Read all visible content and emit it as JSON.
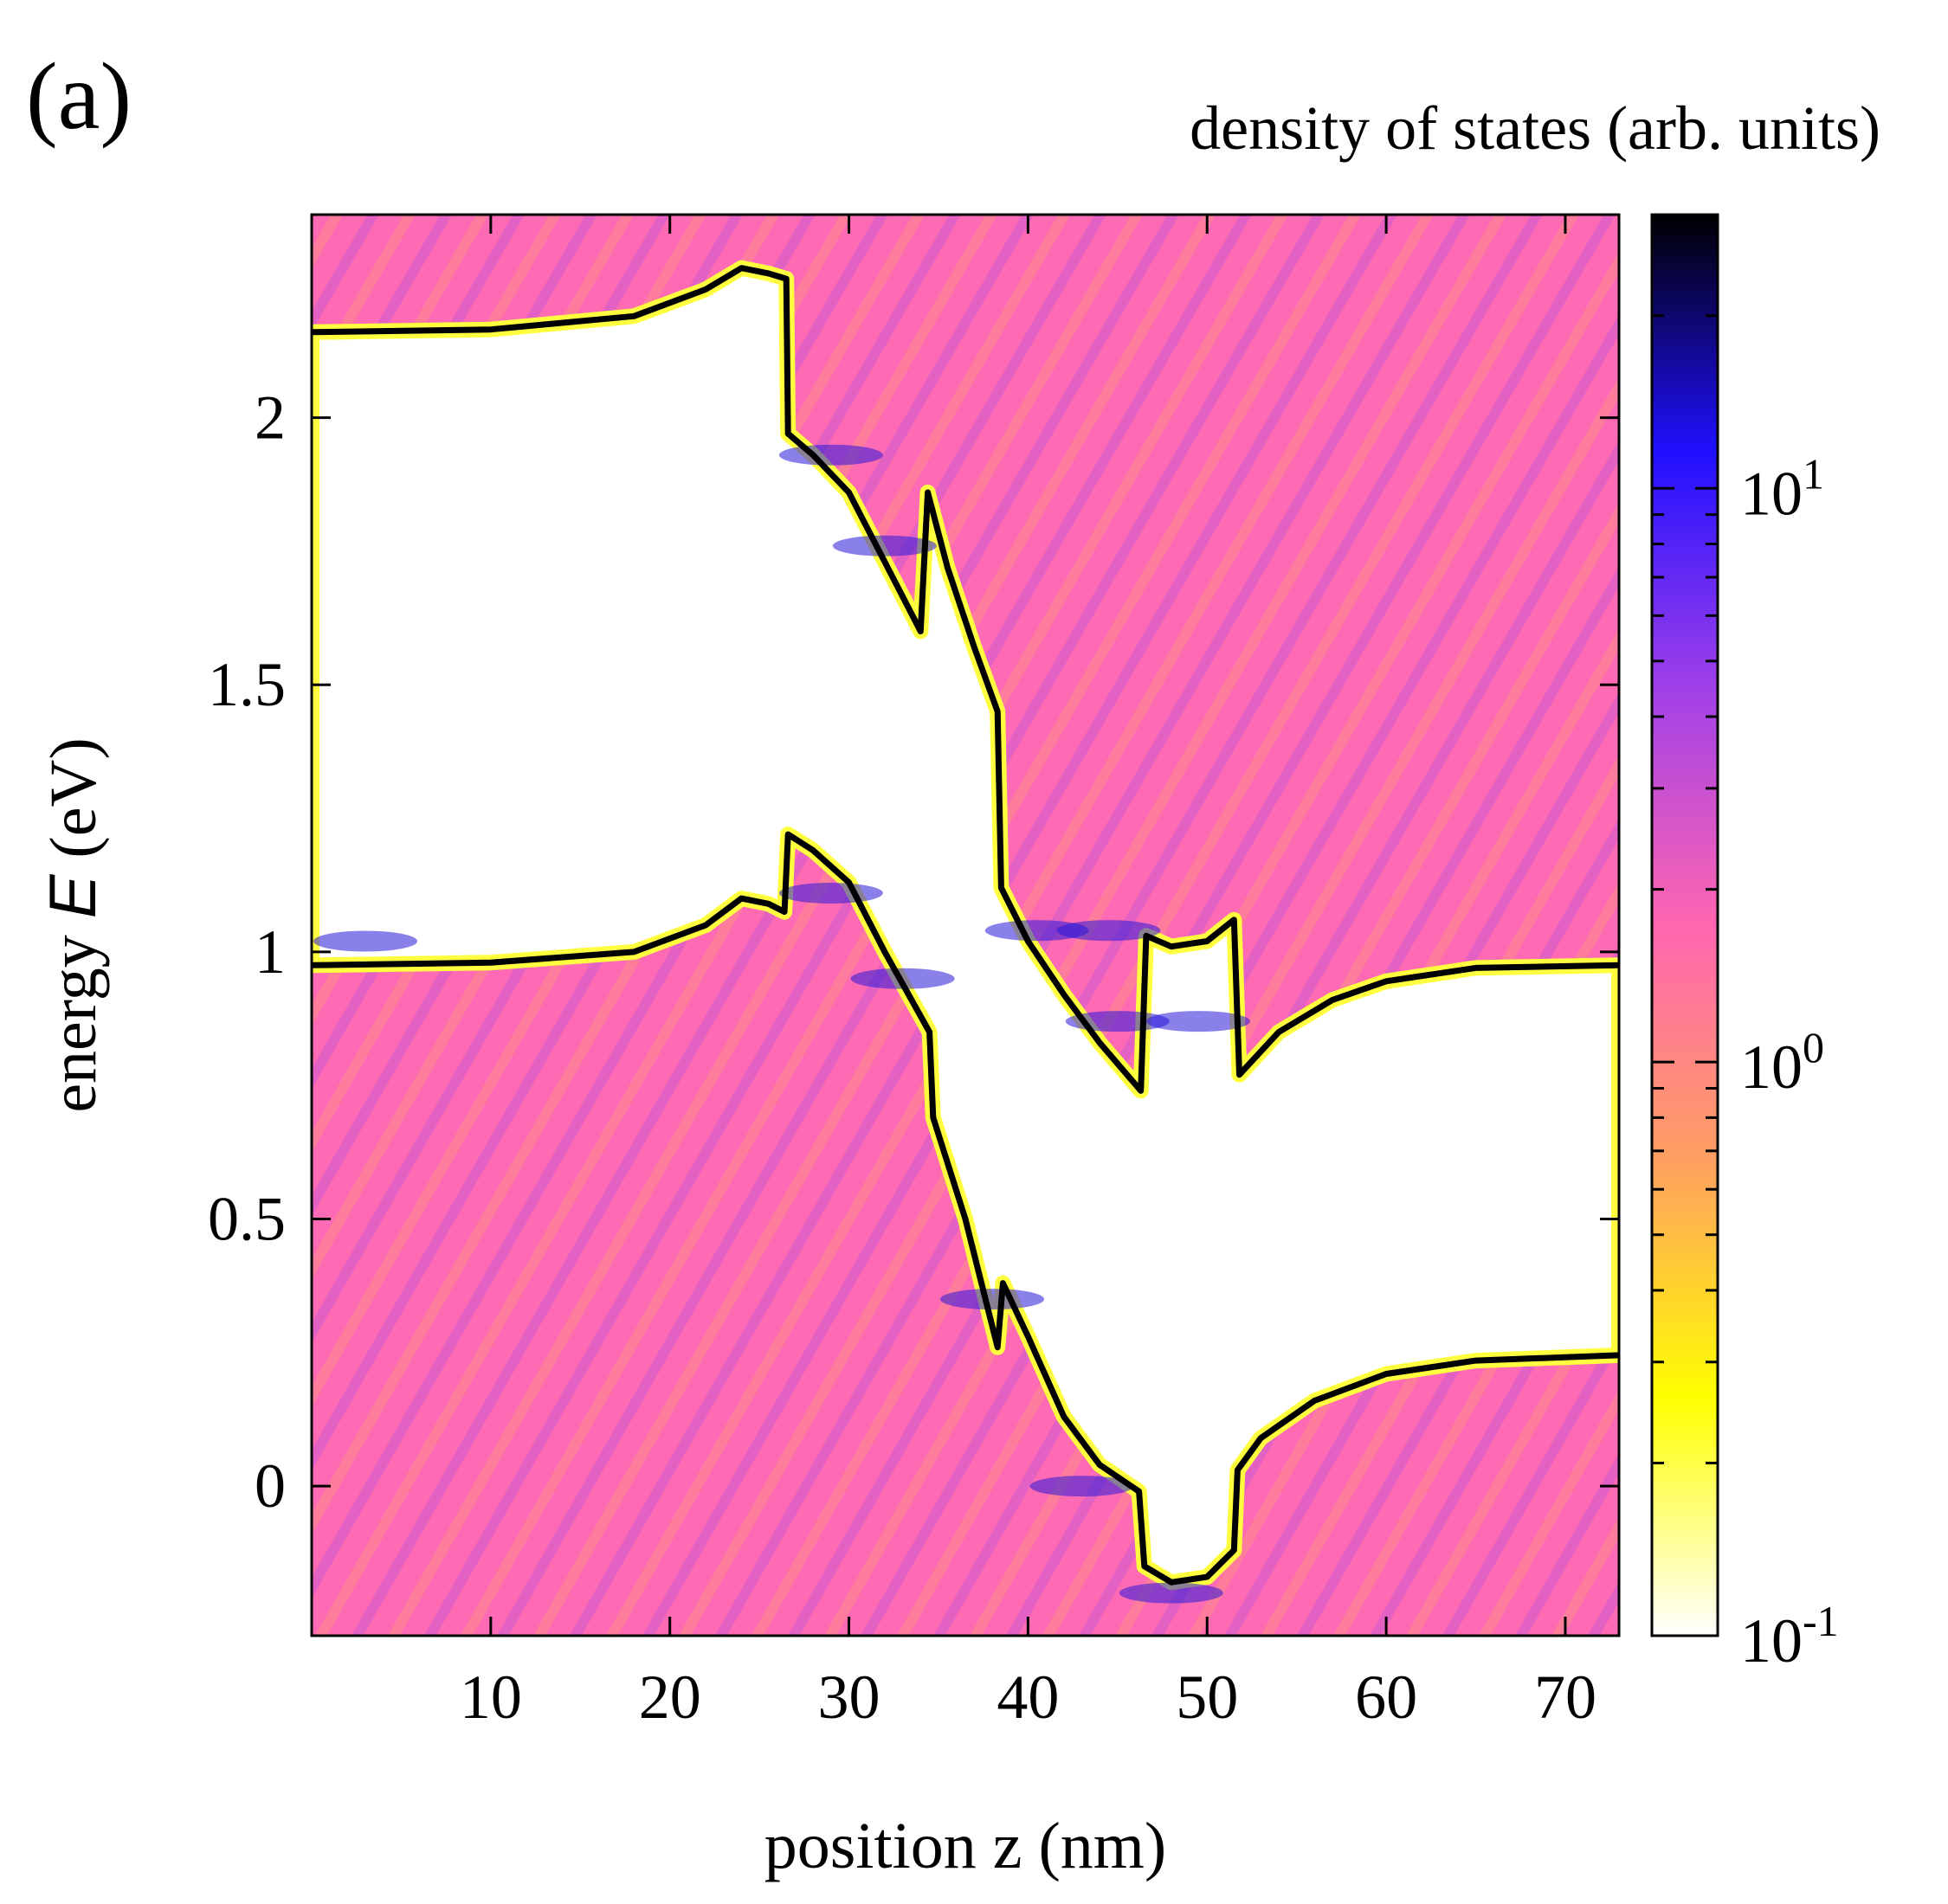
{
  "panel_label": "(a)",
  "chart_data": {
    "type": "heatmap",
    "title": "",
    "xlabel": "position z (nm)",
    "ylabel_prefix": "energy ",
    "ylabel_symbol": "E",
    "ylabel_suffix": " (eV)",
    "xlim": [
      0,
      73
    ],
    "ylim": [
      -0.28,
      2.38
    ],
    "xticks": [
      10,
      20,
      30,
      40,
      50,
      60,
      70
    ],
    "yticks": [
      0,
      0.5,
      1,
      1.5,
      2
    ],
    "colorbar": {
      "label": "density of states (arb. units)",
      "scale": "log",
      "range": [
        0.1,
        30
      ],
      "ticks": [
        {
          "value": 0.1,
          "base": "10",
          "exp": "-1"
        },
        {
          "value": 1,
          "base": "10",
          "exp": "0"
        },
        {
          "value": 10,
          "base": "10",
          "exp": "1"
        }
      ],
      "colors": [
        "#ffffff",
        "#ffff00",
        "#ffa060",
        "#ff66b0",
        "#a040e8",
        "#2010ff",
        "#000000"
      ]
    },
    "band_edges": {
      "conduction_band": [
        [
          0,
          2.16
        ],
        [
          10,
          2.165
        ],
        [
          18,
          2.19
        ],
        [
          22,
          2.24
        ],
        [
          24,
          2.28
        ],
        [
          25.5,
          2.27
        ],
        [
          26.5,
          2.26
        ],
        [
          26.6,
          1.97
        ],
        [
          28,
          1.93
        ],
        [
          30,
          1.86
        ],
        [
          32,
          1.73
        ],
        [
          34,
          1.6
        ],
        [
          34.4,
          1.86
        ],
        [
          35.5,
          1.72
        ],
        [
          37,
          1.57
        ],
        [
          38.3,
          1.45
        ],
        [
          38.5,
          1.12
        ],
        [
          40,
          1.02
        ],
        [
          42,
          0.92
        ],
        [
          44,
          0.83
        ],
        [
          46.3,
          0.74
        ],
        [
          46.6,
          1.03
        ],
        [
          48,
          1.01
        ],
        [
          50,
          1.02
        ],
        [
          51.5,
          1.06
        ],
        [
          51.8,
          0.77
        ],
        [
          54,
          0.85
        ],
        [
          57,
          0.91
        ],
        [
          60,
          0.945
        ],
        [
          65,
          0.97
        ],
        [
          73,
          0.975
        ]
      ],
      "valence_band": [
        [
          0,
          0.975
        ],
        [
          10,
          0.98
        ],
        [
          18,
          1.0
        ],
        [
          22,
          1.05
        ],
        [
          24,
          1.1
        ],
        [
          25.5,
          1.09
        ],
        [
          26.4,
          1.075
        ],
        [
          26.6,
          1.22
        ],
        [
          28,
          1.19
        ],
        [
          30,
          1.13
        ],
        [
          32,
          1.0
        ],
        [
          34.5,
          0.85
        ],
        [
          34.7,
          0.69
        ],
        [
          36.5,
          0.5
        ],
        [
          38.3,
          0.26
        ],
        [
          38.6,
          0.38
        ],
        [
          40,
          0.28
        ],
        [
          42,
          0.13
        ],
        [
          44,
          0.04
        ],
        [
          46.2,
          -0.01
        ],
        [
          46.5,
          -0.15
        ],
        [
          48,
          -0.18
        ],
        [
          50,
          -0.17
        ],
        [
          51.5,
          -0.12
        ],
        [
          51.7,
          0.03
        ],
        [
          53,
          0.09
        ],
        [
          56,
          0.16
        ],
        [
          60,
          0.21
        ],
        [
          65,
          0.235
        ],
        [
          73,
          0.245
        ]
      ]
    }
  }
}
